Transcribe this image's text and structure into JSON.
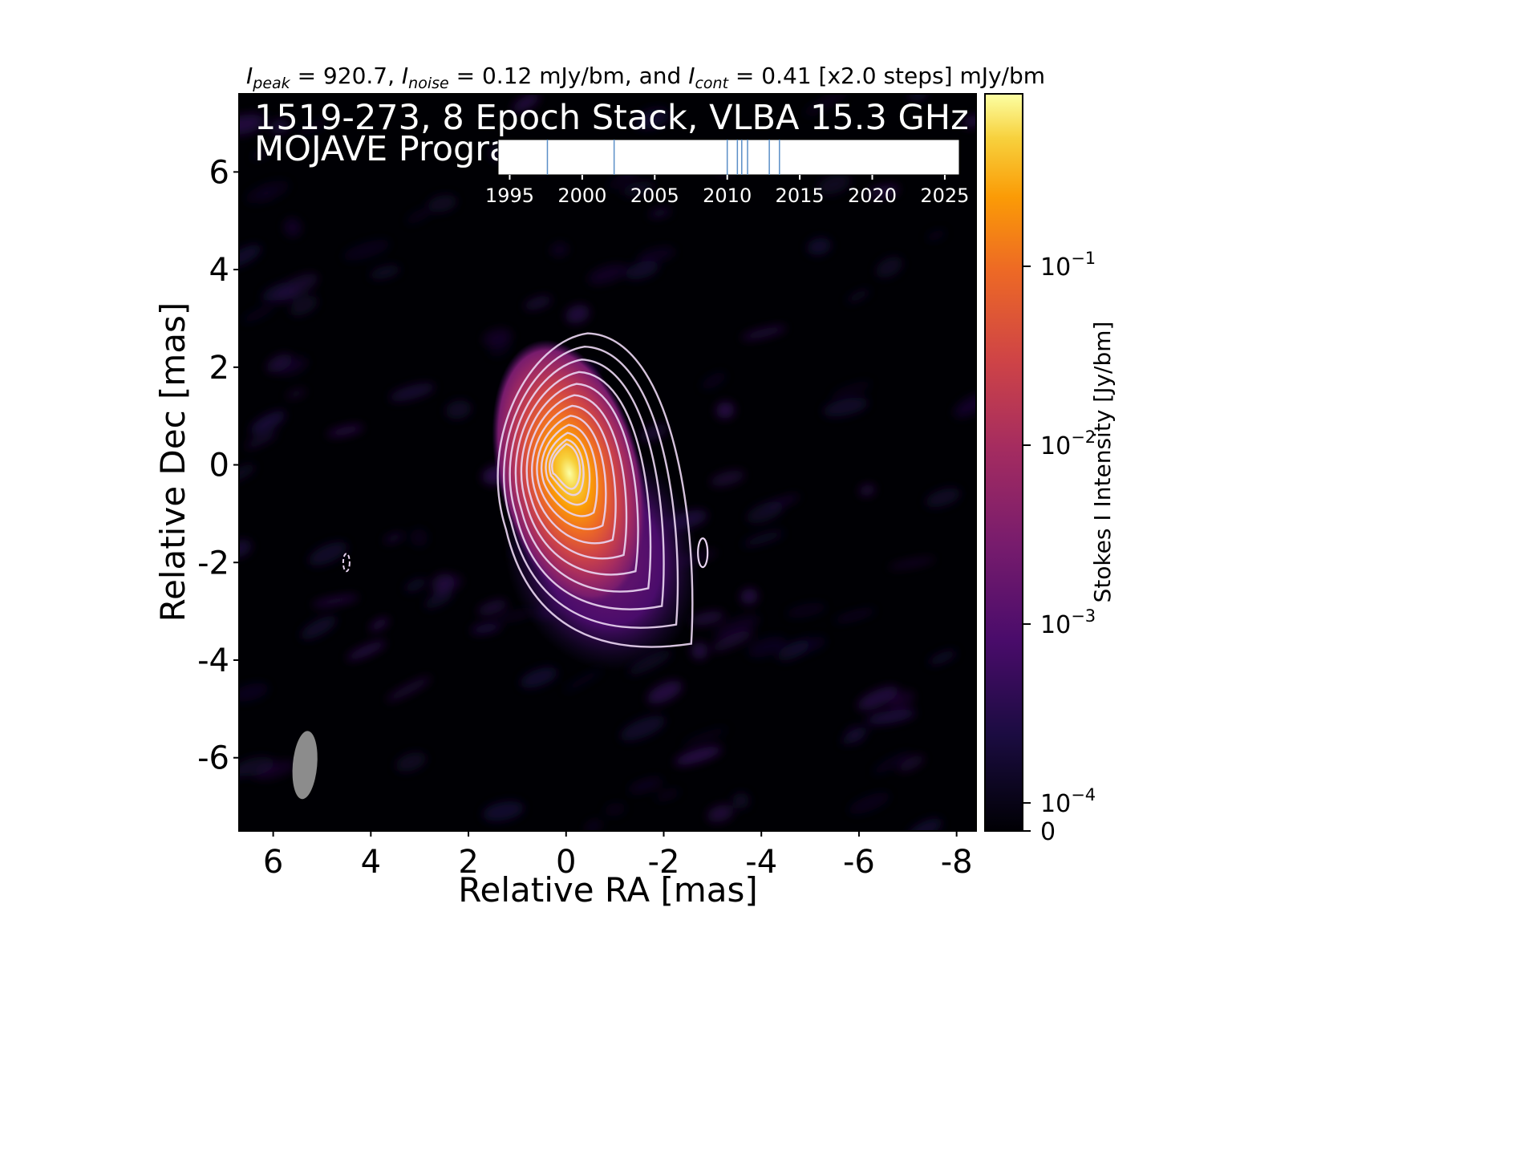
{
  "chart_data": {
    "type": "heatmap",
    "title": "I_peak = 920.7, I_noise = 0.12 mJy/bm, and I_cont = 0.41 [x2.0 steps] mJy/bm",
    "title_parts": {
      "peak_sym": "I",
      "peak_sub": "peak",
      "peak_val": " = 920.7, ",
      "noise_sym": "I",
      "noise_sub": "noise",
      "noise_val": " = 0.12 mJy/bm, and ",
      "cont_sym": "I",
      "cont_sub": "cont",
      "cont_val": " = 0.41 [x2.0 steps] mJy/bm"
    },
    "overlay_line1": "1519-273, 8 Epoch Stack, VLBA 15.3 GHz",
    "overlay_line2": "MOJAVE Program",
    "xlabel": "Relative RA [mas]",
    "ylabel": "Relative Dec [mas]",
    "xlim": [
      6.7,
      -8.4
    ],
    "ylim": [
      -7.5,
      7.6
    ],
    "x_ticks": [
      6,
      4,
      2,
      0,
      -2,
      -4,
      -6,
      -8
    ],
    "x_tick_labels": [
      "6",
      "4",
      "2",
      "0",
      "-2",
      "-4",
      "-6",
      "-8"
    ],
    "y_ticks": [
      6,
      4,
      2,
      0,
      -2,
      -4,
      -6
    ],
    "y_tick_labels": [
      "6",
      "4",
      "2",
      "0",
      "-2",
      "-4",
      "-6"
    ],
    "colormap": "inferno",
    "colorbar": {
      "label": "Stokes I Intensity [Jy/bm]",
      "scale": "log",
      "tick_values": [
        0.1,
        0.01,
        0.001,
        0.0001,
        0
      ],
      "tick_labels": [
        {
          "base": "10",
          "exp": "−1"
        },
        {
          "base": "10",
          "exp": "−2"
        },
        {
          "base": "10",
          "exp": "−3"
        },
        {
          "base": "10",
          "exp": "−4"
        },
        {
          "base": "0",
          "exp": ""
        }
      ]
    },
    "peak_jy_per_beam": 0.9207,
    "contour_base_mjy": 0.41,
    "contour_step": 2.0,
    "contour_count": 12,
    "beam": {
      "ra": 5.35,
      "dec": -6.15,
      "major_mas": 1.4,
      "minor_mas": 0.5,
      "pa_deg": 5
    },
    "epochs": {
      "x_ticks": [
        1995,
        2000,
        2005,
        2010,
        2015,
        2020,
        2025
      ],
      "x_tick_labels": [
        "1995",
        "2000",
        "2005",
        "2010",
        "2015",
        "2020",
        "2025"
      ],
      "xlim": [
        1994.2,
        2026.0
      ],
      "dates": [
        1997.6,
        2002.2,
        2010.0,
        2010.7,
        2011.0,
        2011.4,
        2012.9,
        2013.6
      ]
    },
    "colors": {
      "contour": "#e8d4f0",
      "epoch_line": "#5b8fc7",
      "beam": "#8c8c8c",
      "background": "#000004"
    }
  }
}
